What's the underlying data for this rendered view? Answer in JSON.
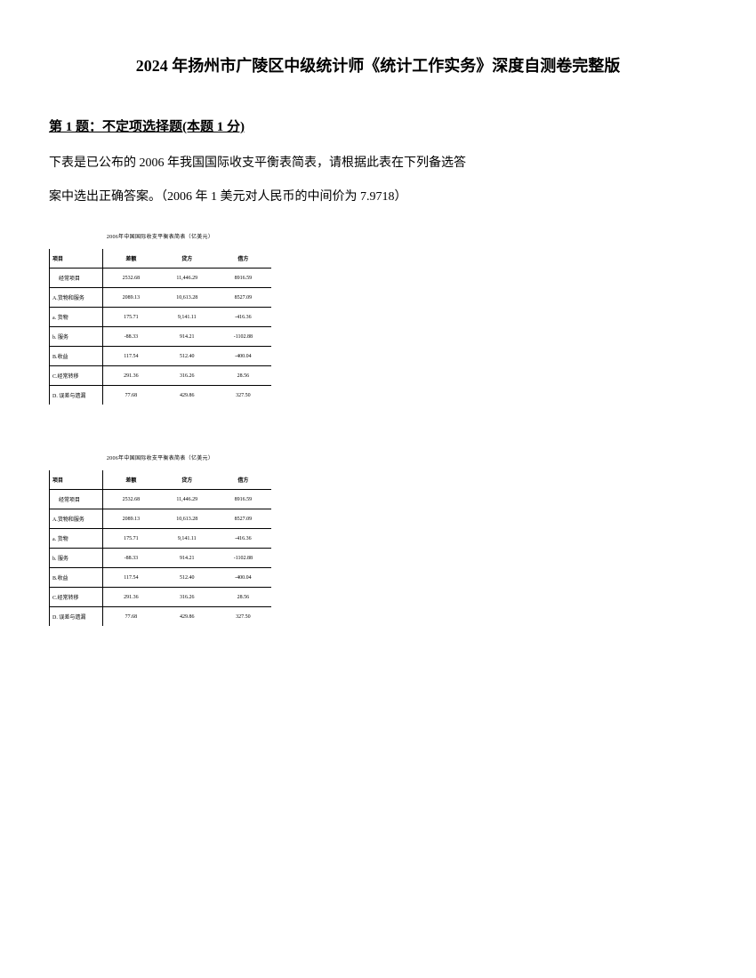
{
  "document": {
    "title": "2024 年扬州市广陵区中级统计师《统计工作实务》深度自测卷完整版",
    "question_header": "第 1 题：不定项选择题(本题 1 分)",
    "question_line1": "下表是已公布的 2006 年我国国际收支平衡表简表，请根据此表在下列备选答",
    "question_line2": "案中选出正确答案。（2006 年 1 美元对人民币的中间价为 7.9718）"
  },
  "table": {
    "title": "2006年中国国际收支平衡表简表（亿美元）",
    "background_color": "#ffffff",
    "border_color": "#000000",
    "font_size": 6,
    "columns": [
      "项目",
      "差额",
      "贷方",
      "借方"
    ],
    "rows": [
      {
        "label": "经常项目",
        "indent": true,
        "values": [
          "2532.68",
          "11,446.29",
          "8916.59"
        ],
        "section_border": false
      },
      {
        "label": "A.货物和服务",
        "indent": false,
        "values": [
          "2089.13",
          "10,613.28",
          "8527.09"
        ],
        "section_border": true
      },
      {
        "label": "a. 货物",
        "indent": false,
        "values": [
          "175.71",
          "9,141.11",
          "-416.36"
        ],
        "section_border": true
      },
      {
        "label": "b. 服务",
        "indent": false,
        "values": [
          "-88.33",
          "914.21",
          "-1102.88"
        ],
        "section_border": true
      },
      {
        "label": "B.收益",
        "indent": false,
        "values": [
          "117.54",
          "512.40",
          "-400.04"
        ],
        "section_border": true
      },
      {
        "label": "C.经常转移",
        "indent": false,
        "values": [
          "291.36",
          "316.26",
          "28.56"
        ],
        "section_border": true
      },
      {
        "label": "D. 误差与遗漏",
        "indent": false,
        "values": [
          "77.68",
          "429.86",
          "327.50"
        ],
        "section_border": true
      }
    ]
  }
}
